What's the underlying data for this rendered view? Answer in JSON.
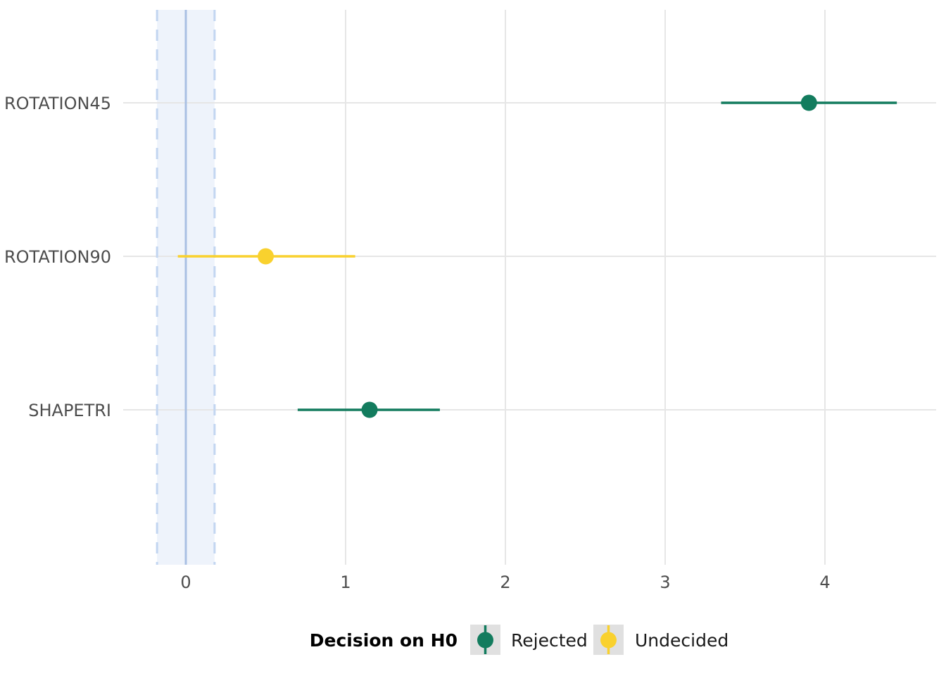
{
  "chart_data": {
    "type": "scatter",
    "title": "",
    "xlabel": "",
    "ylabel": "",
    "xlim": [
      -0.18,
      4.7
    ],
    "x_ticks": [
      0,
      1,
      2,
      3,
      4
    ],
    "grid": true,
    "rope": {
      "low": -0.18,
      "high": 0.18,
      "center": 0
    },
    "categories": [
      "ROTATION45",
      "ROTATION90",
      "SHAPETRI"
    ],
    "points": [
      {
        "term": "ROTATION45",
        "estimate": 3.9,
        "lower": 3.35,
        "upper": 4.45,
        "decision": "Rejected"
      },
      {
        "term": "ROTATION90",
        "estimate": 0.5,
        "lower": -0.05,
        "upper": 1.06,
        "decision": "Undecided"
      },
      {
        "term": "SHAPETRI",
        "estimate": 1.15,
        "lower": 0.7,
        "upper": 1.59,
        "decision": "Rejected"
      }
    ],
    "legend": {
      "title": "Decision on H0",
      "position": "bottom",
      "entries": [
        {
          "label": "Rejected",
          "color": "#137c5e"
        },
        {
          "label": "Undecided",
          "color": "#f9d12e"
        }
      ]
    },
    "colors": {
      "Rejected": "#137c5e",
      "Undecided": "#f9d12e",
      "rope_fill": "#eef3fb",
      "rope_line": "#a9c0e3",
      "rope_dash": "#c3d6f1",
      "grid": "#e6e6e6"
    }
  }
}
